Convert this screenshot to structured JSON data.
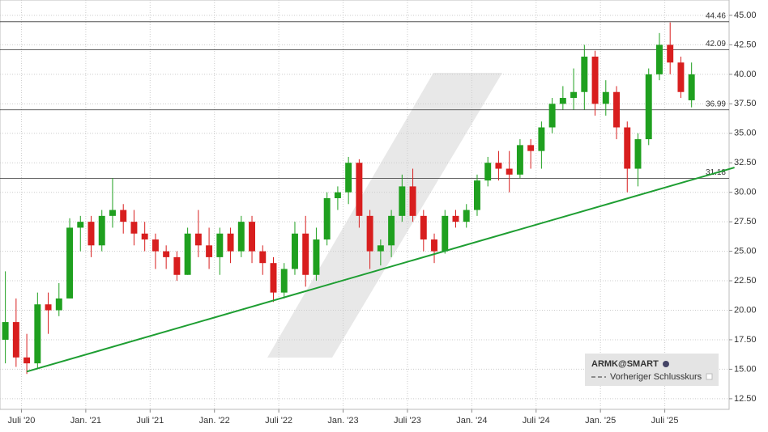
{
  "chart_data": {
    "type": "candlestick",
    "x": [
      "2020-05",
      "2020-06",
      "2020-07",
      "2020-08",
      "2020-09",
      "2020-10",
      "2020-11",
      "2020-12",
      "2021-01",
      "2021-02",
      "2021-03",
      "2021-04",
      "2021-05",
      "2021-06",
      "2021-07",
      "2021-08",
      "2021-09",
      "2021-10",
      "2021-11",
      "2021-12",
      "2022-01",
      "2022-02",
      "2022-03",
      "2022-04",
      "2022-05",
      "2022-06",
      "2022-07",
      "2022-08",
      "2022-09",
      "2022-10",
      "2022-11",
      "2022-12",
      "2023-01",
      "2023-02",
      "2023-03",
      "2023-04",
      "2023-05",
      "2023-06",
      "2023-07",
      "2023-08",
      "2023-09",
      "2023-10",
      "2023-11",
      "2023-12",
      "2024-01",
      "2024-02",
      "2024-03",
      "2024-04",
      "2024-05",
      "2024-06",
      "2024-07",
      "2024-08",
      "2024-09",
      "2024-10",
      "2024-11",
      "2024-12",
      "2025-01",
      "2025-02",
      "2025-03",
      "2025-04",
      "2025-05",
      "2025-06",
      "2025-07",
      "2025-08",
      "2025-09"
    ],
    "open": [
      17.5,
      19,
      16,
      15.5,
      20.5,
      20,
      21,
      27,
      27.5,
      25.5,
      28,
      28.5,
      27.5,
      26.5,
      26,
      25,
      24.5,
      23,
      26.5,
      25.5,
      24.5,
      26.5,
      25,
      27.5,
      25,
      24,
      21.5,
      23.5,
      26.5,
      23,
      26,
      29.5,
      30,
      32.5,
      28,
      25,
      25.5,
      28,
      30.5,
      28,
      26,
      25,
      28,
      27.5,
      28.5,
      31,
      32.5,
      32,
      31.5,
      34,
      33.5,
      35.5,
      37.5,
      38,
      38.5,
      41.5,
      37.5,
      38.5,
      35.5,
      32,
      34.5,
      40,
      42.5,
      41,
      37.8
    ],
    "high": [
      23.3,
      21,
      18,
      21.5,
      21.5,
      22.3,
      27.8,
      28,
      28,
      28.5,
      31.2,
      29,
      28.5,
      27.5,
      26.5,
      25.5,
      25,
      27,
      28.5,
      27,
      27,
      27,
      28,
      28,
      25.5,
      24.5,
      24,
      27.5,
      28,
      27,
      30,
      30.5,
      33,
      32.8,
      28.5,
      26,
      28.5,
      31.5,
      32,
      28.5,
      26.5,
      28.5,
      28.5,
      29,
      31.5,
      33,
      33.5,
      33.5,
      34.5,
      34.5,
      36,
      38,
      39,
      40.5,
      42.5,
      42,
      39.5,
      39,
      36,
      35,
      40.5,
      43.5,
      44.4,
      41.5,
      41
    ],
    "low": [
      15.5,
      15.2,
      14.6,
      15,
      18,
      19.5,
      21,
      25,
      24.5,
      25,
      27,
      26.5,
      25.5,
      25,
      23.5,
      23.5,
      22.5,
      23,
      24.5,
      23.5,
      23,
      24,
      24.5,
      24,
      23,
      20.7,
      21,
      23,
      22,
      22.5,
      25.5,
      28.5,
      29,
      27,
      23.5,
      23.8,
      24.5,
      27.5,
      27.5,
      25,
      24,
      24.8,
      27,
      27,
      28,
      30.5,
      31,
      30,
      31.2,
      32,
      32,
      35,
      37,
      37,
      37,
      36.5,
      36.5,
      34.5,
      30,
      30.5,
      34,
      39.5,
      40,
      38,
      37.2
    ],
    "close": [
      19,
      16,
      15.5,
      20.5,
      20,
      21,
      27,
      27.5,
      25.5,
      28,
      28.5,
      27.5,
      26.5,
      26,
      25,
      24.5,
      23,
      26.5,
      25.5,
      24.5,
      26.5,
      25,
      27.5,
      25,
      24,
      21.5,
      23.5,
      26.5,
      23,
      26,
      29.5,
      30,
      32.5,
      28,
      25,
      25.5,
      28,
      30.5,
      28,
      26,
      25,
      28,
      27.5,
      28.5,
      31,
      32.5,
      32,
      31.5,
      34,
      33.5,
      35.5,
      37.5,
      38,
      38.5,
      41.5,
      37.5,
      38.5,
      35.5,
      32,
      34.5,
      40,
      42.5,
      41,
      38.5,
      40
    ],
    "up_color": "#1fa01f",
    "down_color": "#d81e1e",
    "xlim": [
      "2020-05",
      "2026-01"
    ],
    "xticks": [
      {
        "value": "2020-07",
        "label": "Juli '20"
      },
      {
        "value": "2021-01",
        "label": "Jan. '21"
      },
      {
        "value": "2021-07",
        "label": "Juli '21"
      },
      {
        "value": "2022-01",
        "label": "Jan. '22"
      },
      {
        "value": "2022-07",
        "label": "Juli '22"
      },
      {
        "value": "2023-01",
        "label": "Jan. '23"
      },
      {
        "value": "2023-07",
        "label": "Juli '23"
      },
      {
        "value": "2024-01",
        "label": "Jan. '24"
      },
      {
        "value": "2024-07",
        "label": "Juli '24"
      },
      {
        "value": "2025-01",
        "label": "Jan. '25"
      },
      {
        "value": "2025-07",
        "label": "Juli '25"
      }
    ],
    "ylim": [
      11.6,
      46.3
    ],
    "yticks": [
      {
        "value": 12.5,
        "label": "12.50"
      },
      {
        "value": 15,
        "label": "15.00"
      },
      {
        "value": 17.5,
        "label": "17.50"
      },
      {
        "value": 20,
        "label": "20.00"
      },
      {
        "value": 22.5,
        "label": "22.50"
      },
      {
        "value": 25,
        "label": "25.00"
      },
      {
        "value": 27.5,
        "label": "27.50"
      },
      {
        "value": 30,
        "label": "30.00"
      },
      {
        "value": 32.5,
        "label": "32.50"
      },
      {
        "value": 35,
        "label": "35.00"
      },
      {
        "value": 37.5,
        "label": "37.50"
      },
      {
        "value": 40,
        "label": "40.00"
      },
      {
        "value": 42.5,
        "label": "42.50"
      },
      {
        "value": 45,
        "label": "45.00"
      }
    ],
    "grid": true,
    "levels": [
      44.46,
      42.09,
      36.99,
      31.18
    ],
    "trendline": {
      "x": [
        "2020-07",
        "2026-01"
      ],
      "values": [
        14.8,
        32.1
      ],
      "color": "#1e9e32"
    },
    "legend": {
      "symbol": "ARMK@SMART",
      "previous_close": "Vorheriger Schlusskurs"
    }
  }
}
